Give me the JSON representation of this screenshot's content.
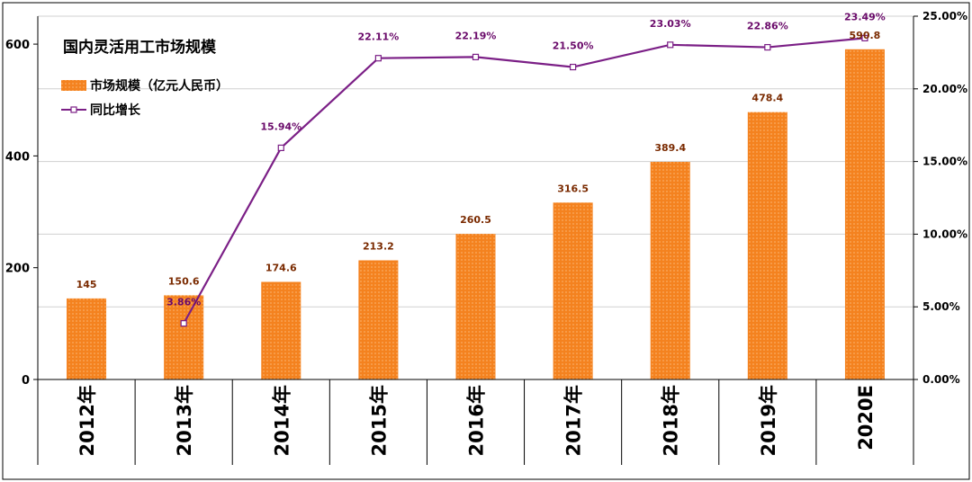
{
  "colors": {
    "bar": "#F4821F",
    "bar_dots": "#FFD7A8",
    "line": "#7B1F86",
    "grid": "#D0D0D0",
    "frame": "#000000"
  },
  "chart_data": {
    "type": "bar",
    "title": "国内灵活用工市场规模",
    "categories": [
      "2012年",
      "2013年",
      "2014年",
      "2015年",
      "2016年",
      "2017年",
      "2018年",
      "2019年",
      "2020E"
    ],
    "series": [
      {
        "name": "市场规模（亿元人民币）",
        "type": "bar",
        "axis": "left",
        "values": [
          145,
          150.6,
          174.6,
          213.2,
          260.5,
          316.5,
          389.4,
          478.4,
          590.8
        ],
        "labels": [
          "145",
          "150.6",
          "174.6",
          "213.2",
          "260.5",
          "316.5",
          "389.4",
          "478.4",
          "590.8"
        ]
      },
      {
        "name": "同比增长",
        "type": "line",
        "axis": "right",
        "values": [
          null,
          3.86,
          15.94,
          22.11,
          22.19,
          21.5,
          23.03,
          22.86,
          23.49
        ],
        "labels": [
          "",
          "3.86%",
          "15.94%",
          "22.11%",
          "22.19%",
          "21.50%",
          "23.03%",
          "22.86%",
          "23.49%"
        ]
      }
    ],
    "y_left": {
      "range": [
        0,
        650
      ],
      "ticks": [
        0,
        200,
        400,
        600
      ]
    },
    "y_right": {
      "range": [
        0,
        25
      ],
      "ticks": [
        0,
        5,
        10,
        15,
        20,
        25
      ],
      "tick_labels": [
        "0.00%",
        "5.00%",
        "10.00%",
        "15.00%",
        "20.00%",
        "25.00%"
      ]
    },
    "grid": true,
    "legend_position": "top-left"
  }
}
